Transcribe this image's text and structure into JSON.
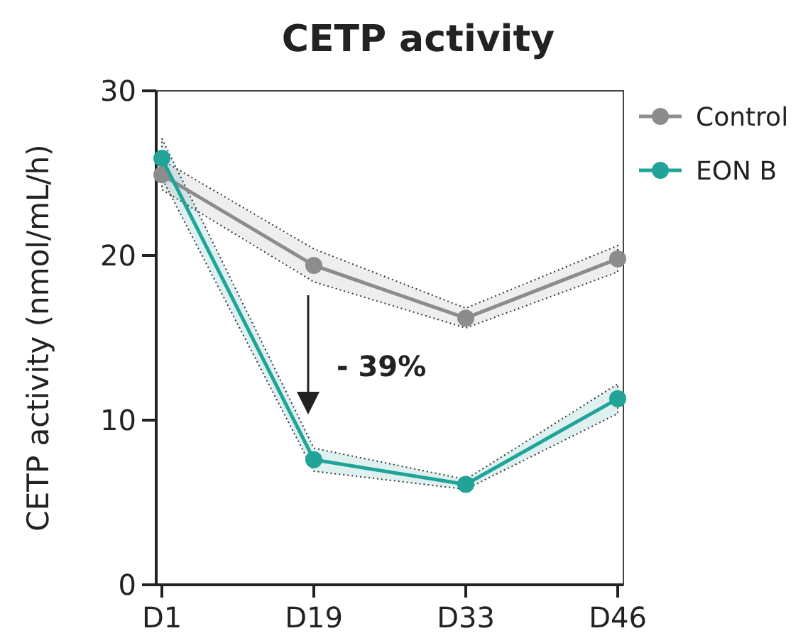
{
  "chart_data": {
    "type": "line",
    "title": "CETP activity",
    "ylabel": "CETP activity (nmol/mL/h)",
    "categories": [
      "D1",
      "D19",
      "D33",
      "D46"
    ],
    "ylim": [
      0,
      30
    ],
    "yticks": [
      0,
      10,
      20,
      30
    ],
    "series": [
      {
        "name": "Control",
        "color": "#8c8c8c",
        "values": [
          24.9,
          19.4,
          16.2,
          19.8
        ],
        "lower": [
          24,
          18.4,
          15.6,
          19
        ],
        "upper": [
          25.8,
          20.4,
          16.8,
          20.6
        ]
      },
      {
        "name": "EON B",
        "color": "#21a398",
        "values": [
          25.9,
          7.6,
          6.1,
          11.3
        ],
        "lower": [
          24.7,
          6.9,
          5.8,
          10.4
        ],
        "upper": [
          27.1,
          8.3,
          6.4,
          12.2
        ]
      }
    ],
    "annotations": [
      "- 39%"
    ],
    "legend": "top right",
    "marker": "circle",
    "line_style": "solid",
    "grid": false
  }
}
